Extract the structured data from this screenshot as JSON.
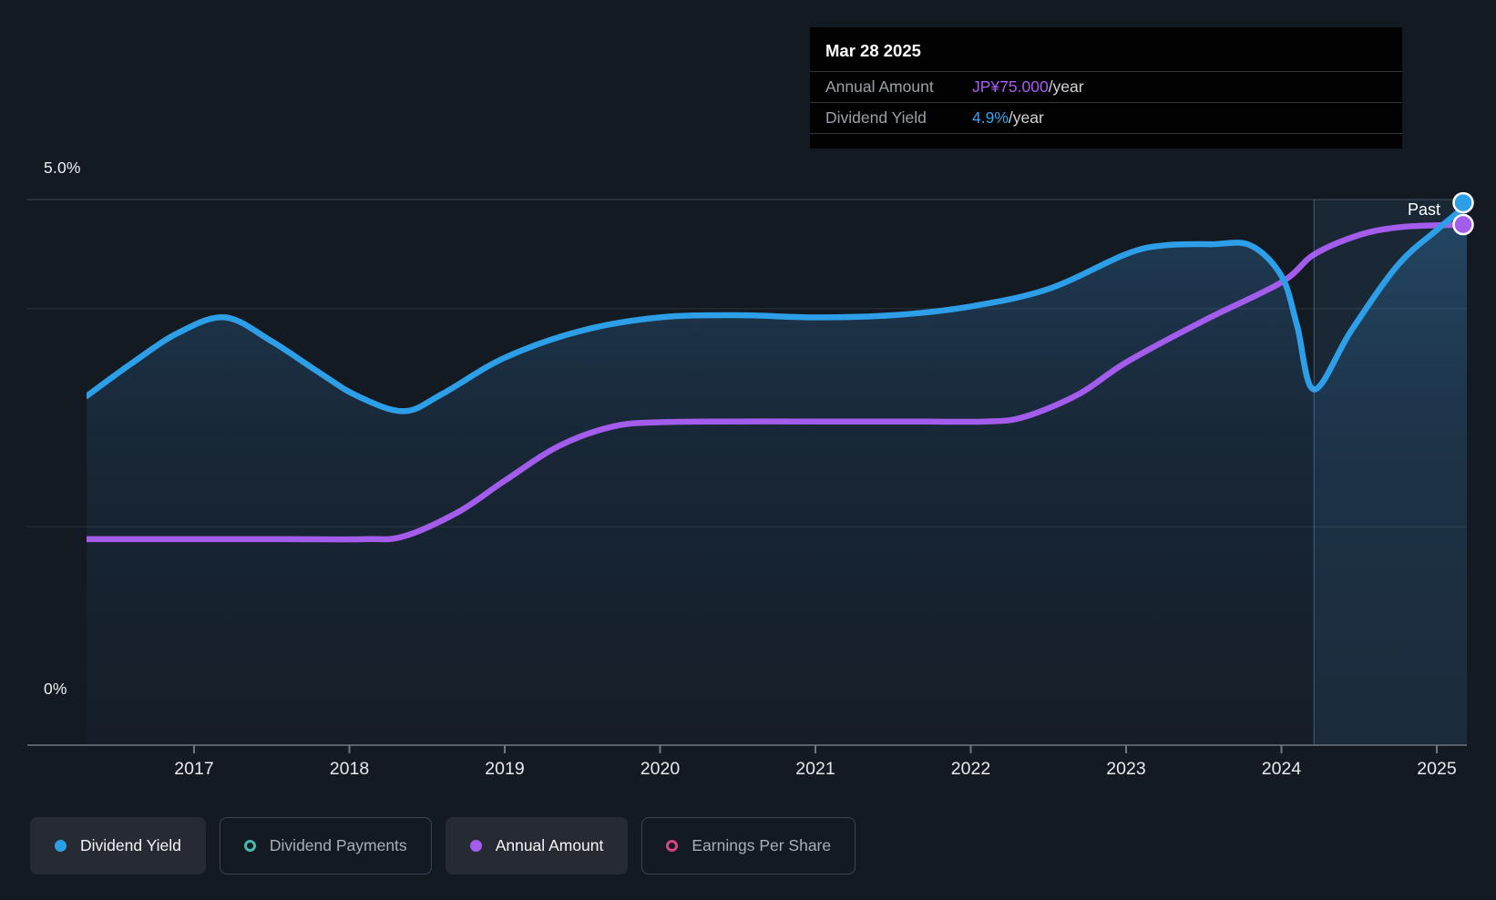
{
  "colors": {
    "background": "#141a22",
    "tooltip_background": "#020202",
    "dividend_yield_blue": "#2d9fe8",
    "annual_amount_purple": "#a35ceb",
    "dividend_payments_teal": "#49b8ac",
    "earnings_per_share_pink": "#d5467e",
    "tooltip_value_purple": "#ab5cf5",
    "tooltip_value_blue": "#35a4f0",
    "axis_text": "#e8eaec",
    "gridline": "#ffffff"
  },
  "y_axis": {
    "top_label": "5.0%",
    "bottom_label": "0%"
  },
  "past_label": "Past",
  "tooltip": {
    "date": "Mar 28 2025",
    "rows": [
      {
        "label": "Annual Amount",
        "value": "JP¥75.000",
        "suffix": "/year",
        "value_color": "#ab5cf5"
      },
      {
        "label": "Dividend Yield",
        "value": "4.9%",
        "suffix": "/year",
        "value_color": "#35a4f0"
      }
    ]
  },
  "legend": {
    "items": [
      {
        "label": "Dividend Yield",
        "marker": "filled",
        "color": "#2d9fe8",
        "active": true
      },
      {
        "label": "Dividend Payments",
        "marker": "ring",
        "color": "#49b8ac",
        "active": false
      },
      {
        "label": "Annual Amount",
        "marker": "filled",
        "color": "#a35ceb",
        "active": true
      },
      {
        "label": "Earnings Per Share",
        "marker": "ring",
        "color": "#d5467e",
        "active": false
      }
    ]
  },
  "chart_data": {
    "type": "area",
    "x_ticks": [
      2017,
      2018,
      2019,
      2020,
      2021,
      2022,
      2023,
      2024,
      2025
    ],
    "x_range": [
      2016.31,
      2025.21
    ],
    "ylim_percent": [
      0,
      5
    ],
    "y_gridlines_percent": [
      5,
      4,
      2
    ],
    "past_divider_x": 2024.21,
    "series": [
      {
        "name": "Dividend Yield",
        "unit": "%",
        "color": "#2d9fe8",
        "points": [
          [
            2016.31,
            3.2
          ],
          [
            2016.6,
            3.5
          ],
          [
            2016.9,
            3.78
          ],
          [
            2017.2,
            3.92
          ],
          [
            2017.5,
            3.7
          ],
          [
            2017.8,
            3.42
          ],
          [
            2018.05,
            3.2
          ],
          [
            2018.35,
            3.06
          ],
          [
            2018.6,
            3.22
          ],
          [
            2019.0,
            3.55
          ],
          [
            2019.5,
            3.8
          ],
          [
            2020.0,
            3.92
          ],
          [
            2020.5,
            3.94
          ],
          [
            2021.0,
            3.92
          ],
          [
            2021.5,
            3.94
          ],
          [
            2022.0,
            4.02
          ],
          [
            2022.5,
            4.18
          ],
          [
            2023.0,
            4.5
          ],
          [
            2023.25,
            4.58
          ],
          [
            2023.55,
            4.59
          ],
          [
            2023.8,
            4.58
          ],
          [
            2024.0,
            4.3
          ],
          [
            2024.1,
            3.85
          ],
          [
            2024.21,
            3.26
          ],
          [
            2024.45,
            3.8
          ],
          [
            2024.75,
            4.4
          ],
          [
            2025.0,
            4.72
          ],
          [
            2025.21,
            4.97
          ]
        ]
      },
      {
        "name": "Annual Amount",
        "unit": "JP¥",
        "color": "#a35ceb",
        "points": [
          [
            2016.31,
            29.6
          ],
          [
            2017.0,
            29.6
          ],
          [
            2017.6,
            29.6
          ],
          [
            2018.1,
            29.6
          ],
          [
            2018.35,
            30.0
          ],
          [
            2018.7,
            33.5
          ],
          [
            2019.0,
            38.0
          ],
          [
            2019.35,
            43.0
          ],
          [
            2019.7,
            45.8
          ],
          [
            2020.0,
            46.4
          ],
          [
            2020.5,
            46.5
          ],
          [
            2021.0,
            46.5
          ],
          [
            2021.6,
            46.5
          ],
          [
            2022.1,
            46.5
          ],
          [
            2022.35,
            47.2
          ],
          [
            2022.7,
            50.5
          ],
          [
            2023.0,
            55.0
          ],
          [
            2023.5,
            61.0
          ],
          [
            2024.0,
            66.5
          ],
          [
            2024.21,
            70.5
          ],
          [
            2024.5,
            73.3
          ],
          [
            2024.75,
            74.4
          ],
          [
            2025.0,
            74.7
          ],
          [
            2025.21,
            74.8
          ]
        ]
      }
    ]
  }
}
